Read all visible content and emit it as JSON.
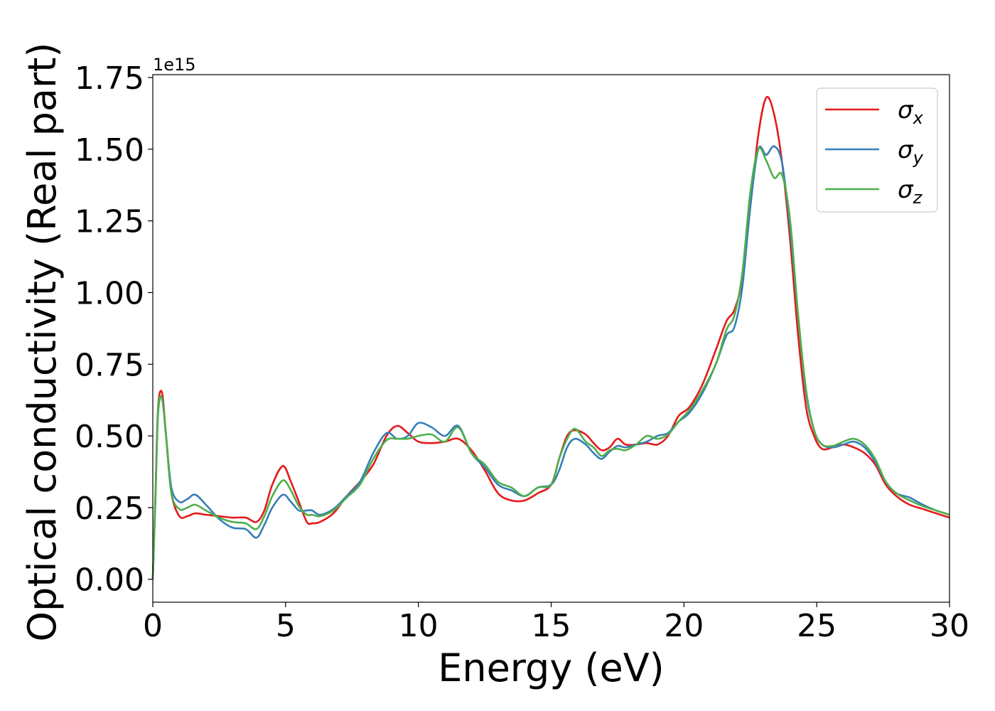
{
  "chart_data": {
    "type": "line",
    "xlabel": "Energy (eV)",
    "ylabel": "Optical conductivity (Real part)",
    "y_offset_label": "1e15",
    "xlim": [
      0,
      30
    ],
    "ylim": [
      -0.08,
      1.76
    ],
    "y_scale_factor": 1000000000000000.0,
    "xticks": [
      0,
      5,
      10,
      15,
      20,
      25,
      30
    ],
    "xtick_labels": [
      "0",
      "5",
      "10",
      "15",
      "20",
      "25",
      "30"
    ],
    "yticks": [
      0,
      0.25,
      0.5,
      0.75,
      1.0,
      1.25,
      1.5,
      1.75
    ],
    "ytick_labels": [
      "0.00",
      "0.25",
      "0.50",
      "0.75",
      "1.00",
      "1.25",
      "1.50",
      "1.75"
    ],
    "grid": false,
    "legend_position": "top-right",
    "series": [
      {
        "name": "σx",
        "symbol": "σ",
        "subscript": "x",
        "color": "#e41a1c",
        "x": [
          0,
          0.1,
          0.2,
          0.35,
          0.5,
          0.7,
          1.0,
          1.3,
          1.6,
          2.0,
          2.5,
          3.0,
          3.5,
          3.9,
          4.2,
          4.5,
          4.9,
          5.2,
          5.5,
          5.8,
          6.0,
          6.3,
          6.8,
          7.3,
          7.8,
          8.3,
          8.8,
          9.2,
          9.6,
          10.0,
          10.5,
          11.0,
          11.5,
          12.0,
          12.5,
          13.0,
          13.5,
          14.0,
          14.5,
          15.0,
          15.3,
          15.6,
          15.9,
          16.3,
          16.6,
          16.9,
          17.2,
          17.5,
          17.8,
          18.2,
          18.6,
          19.0,
          19.4,
          19.8,
          20.2,
          20.7,
          21.2,
          21.6,
          21.9,
          22.2,
          22.5,
          22.8,
          23.1,
          23.4,
          23.7,
          24.0,
          24.3,
          24.6,
          24.9,
          25.2,
          25.6,
          26.0,
          26.4,
          26.8,
          27.2,
          27.6,
          28.0,
          28.5,
          29.0,
          29.5,
          30.0
        ],
        "y": [
          0,
          0.3,
          0.6,
          0.65,
          0.5,
          0.3,
          0.22,
          0.22,
          0.23,
          0.225,
          0.22,
          0.215,
          0.215,
          0.2,
          0.24,
          0.33,
          0.395,
          0.34,
          0.27,
          0.2,
          0.195,
          0.2,
          0.23,
          0.29,
          0.34,
          0.4,
          0.5,
          0.535,
          0.51,
          0.48,
          0.475,
          0.48,
          0.49,
          0.45,
          0.38,
          0.3,
          0.275,
          0.275,
          0.3,
          0.33,
          0.42,
          0.5,
          0.52,
          0.505,
          0.475,
          0.45,
          0.46,
          0.49,
          0.47,
          0.47,
          0.475,
          0.47,
          0.5,
          0.57,
          0.6,
          0.68,
          0.8,
          0.9,
          0.94,
          1.05,
          1.3,
          1.55,
          1.68,
          1.62,
          1.45,
          1.18,
          0.85,
          0.6,
          0.5,
          0.455,
          0.46,
          0.47,
          0.46,
          0.44,
          0.4,
          0.33,
          0.29,
          0.26,
          0.245,
          0.23,
          0.215
        ]
      },
      {
        "name": "σy",
        "symbol": "σ",
        "subscript": "y",
        "color": "#377eb8",
        "x": [
          0,
          0.1,
          0.2,
          0.35,
          0.5,
          0.7,
          1.0,
          1.3,
          1.6,
          2.0,
          2.5,
          3.0,
          3.5,
          3.9,
          4.2,
          4.5,
          4.9,
          5.2,
          5.5,
          5.8,
          6.0,
          6.3,
          6.8,
          7.3,
          7.8,
          8.3,
          8.8,
          9.2,
          9.6,
          10.0,
          10.5,
          11.0,
          11.5,
          12.0,
          12.5,
          13.0,
          13.5,
          14.0,
          14.5,
          15.0,
          15.3,
          15.6,
          15.9,
          16.3,
          16.6,
          16.9,
          17.2,
          17.5,
          17.8,
          18.2,
          18.6,
          19.0,
          19.4,
          19.8,
          20.2,
          20.7,
          21.2,
          21.6,
          21.9,
          22.2,
          22.5,
          22.8,
          23.1,
          23.4,
          23.7,
          24.0,
          24.3,
          24.6,
          24.9,
          25.2,
          25.6,
          26.0,
          26.4,
          26.8,
          27.2,
          27.6,
          28.0,
          28.5,
          29.0,
          29.5,
          30.0
        ],
        "y": [
          0,
          0.28,
          0.58,
          0.63,
          0.5,
          0.32,
          0.27,
          0.28,
          0.295,
          0.26,
          0.21,
          0.18,
          0.175,
          0.145,
          0.19,
          0.25,
          0.295,
          0.27,
          0.24,
          0.24,
          0.24,
          0.225,
          0.245,
          0.29,
          0.34,
          0.44,
          0.51,
          0.49,
          0.5,
          0.545,
          0.53,
          0.5,
          0.535,
          0.44,
          0.39,
          0.33,
          0.31,
          0.29,
          0.32,
          0.33,
          0.38,
          0.46,
          0.49,
          0.47,
          0.44,
          0.42,
          0.445,
          0.465,
          0.46,
          0.47,
          0.48,
          0.5,
          0.51,
          0.55,
          0.58,
          0.65,
          0.75,
          0.85,
          0.88,
          1.02,
          1.3,
          1.5,
          1.48,
          1.51,
          1.45,
          1.22,
          0.92,
          0.65,
          0.52,
          0.47,
          0.46,
          0.47,
          0.48,
          0.46,
          0.41,
          0.34,
          0.3,
          0.285,
          0.26,
          0.24,
          0.225
        ]
      },
      {
        "name": "σz",
        "symbol": "σ",
        "subscript": "z",
        "color": "#4daf4a",
        "x": [
          0,
          0.1,
          0.2,
          0.35,
          0.5,
          0.7,
          1.0,
          1.3,
          1.6,
          2.0,
          2.5,
          3.0,
          3.5,
          3.9,
          4.2,
          4.5,
          4.9,
          5.2,
          5.5,
          5.8,
          6.0,
          6.3,
          6.8,
          7.3,
          7.8,
          8.3,
          8.8,
          9.2,
          9.6,
          10.0,
          10.5,
          11.0,
          11.5,
          12.0,
          12.5,
          13.0,
          13.5,
          14.0,
          14.5,
          15.0,
          15.3,
          15.6,
          15.9,
          16.3,
          16.6,
          16.9,
          17.2,
          17.5,
          17.8,
          18.2,
          18.6,
          19.0,
          19.4,
          19.8,
          20.2,
          20.7,
          21.2,
          21.6,
          21.9,
          22.2,
          22.5,
          22.8,
          23.1,
          23.4,
          23.7,
          24.0,
          24.3,
          24.6,
          24.9,
          25.2,
          25.6,
          26.0,
          26.4,
          26.8,
          27.2,
          27.6,
          28.0,
          28.5,
          29.0,
          29.5,
          30.0
        ],
        "y": [
          0,
          0.29,
          0.59,
          0.63,
          0.5,
          0.3,
          0.245,
          0.25,
          0.26,
          0.24,
          0.215,
          0.2,
          0.195,
          0.175,
          0.22,
          0.29,
          0.345,
          0.31,
          0.255,
          0.225,
          0.225,
          0.22,
          0.24,
          0.285,
          0.33,
          0.42,
          0.485,
          0.49,
          0.49,
          0.5,
          0.505,
          0.48,
          0.53,
          0.44,
          0.4,
          0.34,
          0.32,
          0.29,
          0.32,
          0.33,
          0.42,
          0.49,
          0.525,
          0.48,
          0.46,
          0.43,
          0.45,
          0.455,
          0.45,
          0.47,
          0.5,
          0.49,
          0.505,
          0.55,
          0.59,
          0.66,
          0.75,
          0.87,
          0.92,
          1.07,
          1.35,
          1.5,
          1.46,
          1.4,
          1.41,
          1.25,
          0.92,
          0.66,
          0.52,
          0.47,
          0.465,
          0.48,
          0.49,
          0.47,
          0.42,
          0.34,
          0.3,
          0.275,
          0.255,
          0.24,
          0.225
        ]
      }
    ]
  }
}
